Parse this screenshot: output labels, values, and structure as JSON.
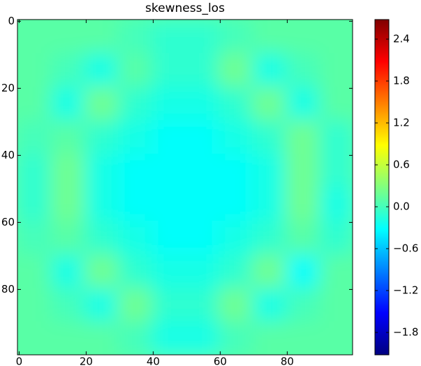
{
  "chart_data": {
    "type": "heatmap",
    "title": "skewness_los",
    "colormap": "jet",
    "xlim": [
      -0.5,
      99.5
    ],
    "ylim": [
      99.5,
      -0.5
    ],
    "xticks": [
      0,
      20,
      40,
      60,
      80
    ],
    "yticks": [
      0,
      20,
      40,
      60,
      80
    ],
    "clim": [
      -2.12,
      2.68
    ],
    "cticks": [
      2.4,
      1.8,
      1.2,
      0.6,
      {
        "value": 0,
        "label": "0.0"
      },
      {
        "value": -0.6,
        "label": "−0.6"
      },
      {
        "value": -1.2,
        "label": "−1.2"
      },
      {
        "value": -1.8,
        "label": "−1.8"
      }
    ],
    "z": [
      [
        0.1,
        0.1,
        0.1,
        0.0,
        -0.1,
        -0.1,
        0.0,
        0.1,
        0.1,
        0.1
      ],
      [
        0.1,
        0.0,
        -0.2,
        0.1,
        -0.1,
        -0.1,
        0.2,
        -0.2,
        0.0,
        0.1
      ],
      [
        0.1,
        -0.2,
        0.2,
        -0.1,
        -0.2,
        -0.2,
        -0.1,
        0.2,
        -0.2,
        0.1
      ],
      [
        0.0,
        0.1,
        -0.1,
        -0.2,
        -0.3,
        -0.3,
        -0.2,
        -0.1,
        0.2,
        -0.1
      ],
      [
        -0.1,
        0.2,
        -0.2,
        -0.3,
        -0.3,
        -0.3,
        -0.3,
        -0.2,
        0.2,
        -0.1
      ],
      [
        -0.1,
        0.2,
        -0.2,
        -0.3,
        -0.3,
        -0.3,
        -0.3,
        -0.2,
        0.2,
        -0.2
      ],
      [
        0.0,
        0.1,
        -0.1,
        -0.2,
        -0.3,
        -0.3,
        -0.2,
        -0.1,
        0.1,
        -0.1
      ],
      [
        0.1,
        -0.2,
        0.2,
        -0.1,
        -0.2,
        -0.2,
        -0.1,
        0.2,
        -0.3,
        0.1
      ],
      [
        0.1,
        0.0,
        -0.2,
        0.2,
        -0.1,
        -0.1,
        0.2,
        -0.2,
        0.0,
        0.1
      ],
      [
        0.1,
        0.1,
        0.1,
        0.0,
        -0.2,
        -0.2,
        0.0,
        0.1,
        0.1,
        0.1
      ]
    ]
  }
}
